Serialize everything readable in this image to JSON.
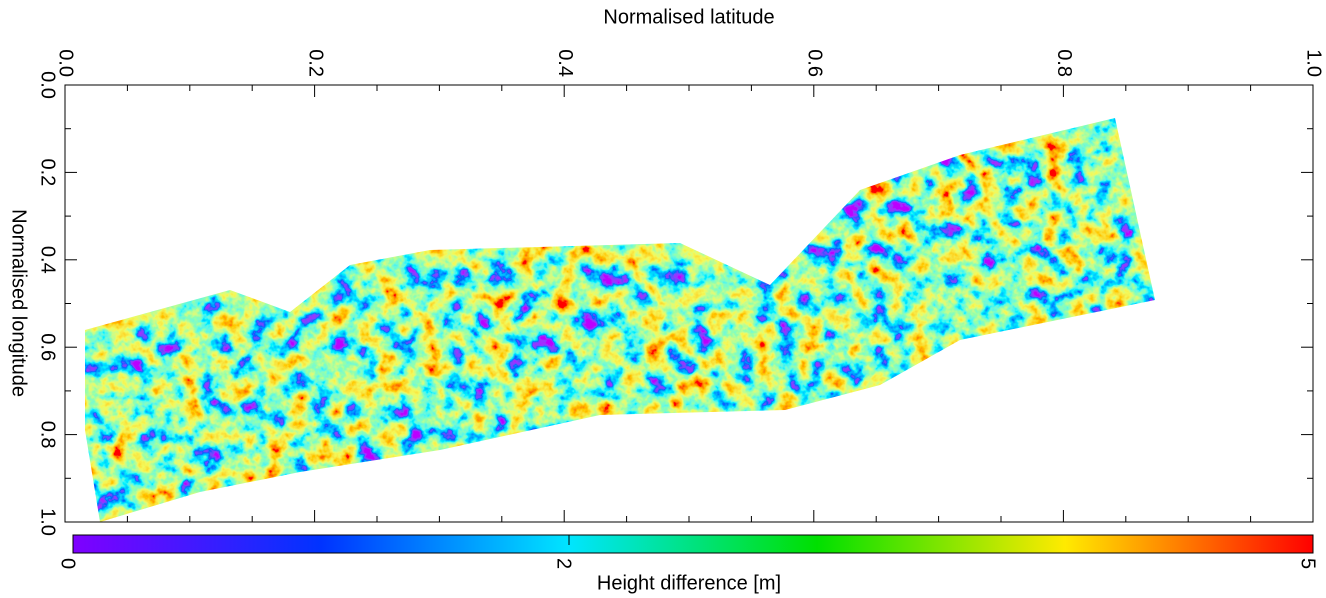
{
  "chart_data": {
    "type": "heatmap",
    "x_label": "Normalised latitude",
    "y_label": "Normalised longitude",
    "xlim": [
      0,
      1
    ],
    "ylim": [
      0,
      1
    ],
    "y_inverted": true,
    "x_axis_position": "top",
    "xticks": [
      {
        "value": 0,
        "label": "0.0"
      },
      0.2,
      0.4,
      0.6,
      0.8,
      {
        "value": 1,
        "label": "1.0"
      }
    ],
    "yticks": [
      {
        "value": 0,
        "label": "0.0"
      },
      0.2,
      0.4,
      0.6,
      0.8,
      {
        "value": 1,
        "label": "1.0"
      }
    ],
    "xminorticks": [
      0.05,
      0.1,
      0.15,
      0.25,
      0.3,
      0.35,
      0.45,
      0.5,
      0.55,
      0.65,
      0.7,
      0.75,
      0.85,
      0.9,
      0.95
    ],
    "yminorticks": [
      0.1,
      0.3,
      0.5,
      0.7,
      0.9
    ],
    "colorbar": {
      "label": "Height difference [m]",
      "lim": [
        0,
        5
      ],
      "ticks": [
        0,
        2,
        5
      ]
    }
  }
}
